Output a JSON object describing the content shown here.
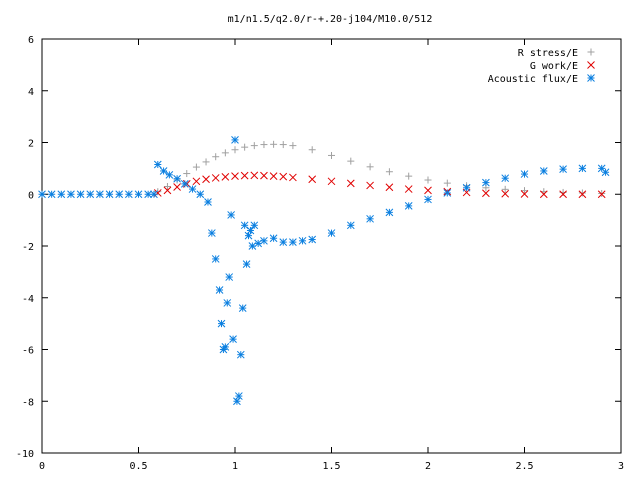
{
  "chart_data": {
    "type": "scatter",
    "title": "m1/n1.5/q2.0/r-+.20-j104/M10.0/512",
    "xlabel": "",
    "ylabel": "",
    "xlim": [
      0,
      3
    ],
    "ylim": [
      -10,
      6
    ],
    "grid": false,
    "legend_position": "top-right",
    "x_ticks": [
      0,
      0.5,
      1,
      1.5,
      2,
      2.5,
      3
    ],
    "x_tick_labels": [
      "0",
      "0.5",
      "1",
      "1.5",
      "2",
      "2.5",
      "3"
    ],
    "y_ticks": [
      -10,
      -8,
      -6,
      -4,
      -2,
      0,
      2,
      4,
      6
    ],
    "y_tick_labels": [
      "-10",
      "-8",
      "-6",
      "-4",
      "-2",
      "0",
      "2",
      "4",
      "6"
    ],
    "series": [
      {
        "name": "R stress/E",
        "marker": "plus",
        "color": "#a0a0a0",
        "x": [
          0.6,
          0.65,
          0.7,
          0.75,
          0.8,
          0.85,
          0.9,
          0.95,
          1.0,
          1.05,
          1.1,
          1.15,
          1.2,
          1.25,
          1.3,
          1.4,
          1.5,
          1.6,
          1.7,
          1.8,
          1.9,
          2.0,
          2.1,
          2.2,
          2.3,
          2.4,
          2.5,
          2.6,
          2.7,
          2.8,
          2.9
        ],
        "y": [
          0.1,
          0.3,
          0.55,
          0.8,
          1.05,
          1.25,
          1.45,
          1.6,
          1.72,
          1.82,
          1.88,
          1.92,
          1.93,
          1.92,
          1.88,
          1.72,
          1.5,
          1.28,
          1.06,
          0.87,
          0.7,
          0.55,
          0.43,
          0.33,
          0.25,
          0.19,
          0.14,
          0.1,
          0.07,
          0.05,
          0.03
        ]
      },
      {
        "name": "G work/E",
        "marker": "cross",
        "color": "#e00000",
        "x": [
          0.6,
          0.65,
          0.7,
          0.75,
          0.8,
          0.85,
          0.9,
          0.95,
          1.0,
          1.05,
          1.1,
          1.15,
          1.2,
          1.25,
          1.3,
          1.4,
          1.5,
          1.6,
          1.7,
          1.8,
          1.9,
          2.0,
          2.1,
          2.2,
          2.3,
          2.4,
          2.5,
          2.6,
          2.7,
          2.8,
          2.9
        ],
        "y": [
          0.05,
          0.15,
          0.28,
          0.4,
          0.5,
          0.58,
          0.63,
          0.67,
          0.7,
          0.72,
          0.73,
          0.72,
          0.7,
          0.68,
          0.65,
          0.58,
          0.5,
          0.42,
          0.34,
          0.27,
          0.2,
          0.15,
          0.1,
          0.07,
          0.04,
          0.02,
          0.01,
          0.0,
          0.0,
          0.0,
          0.0
        ]
      },
      {
        "name": "Acoustic flux/E",
        "marker": "star",
        "color": "#0a7fe0",
        "x": [
          0.0,
          0.05,
          0.1,
          0.15,
          0.2,
          0.25,
          0.3,
          0.35,
          0.4,
          0.45,
          0.5,
          0.55,
          0.58,
          0.6,
          0.63,
          0.66,
          0.7,
          0.74,
          0.78,
          0.82,
          0.86,
          0.88,
          0.9,
          0.92,
          0.93,
          0.94,
          0.95,
          0.96,
          0.97,
          0.98,
          0.99,
          1.0,
          1.01,
          1.02,
          1.03,
          1.04,
          1.05,
          1.06,
          1.07,
          1.08,
          1.09,
          1.1,
          1.12,
          1.15,
          1.2,
          1.25,
          1.3,
          1.35,
          1.4,
          1.5,
          1.6,
          1.7,
          1.8,
          1.9,
          2.0,
          2.1,
          2.2,
          2.3,
          2.4,
          2.5,
          2.6,
          2.7,
          2.8,
          2.9,
          2.92
        ],
        "y": [
          0.0,
          0.0,
          0.0,
          0.0,
          0.0,
          0.0,
          0.0,
          0.0,
          0.0,
          0.0,
          0.0,
          0.0,
          0.0,
          1.15,
          0.9,
          0.75,
          0.6,
          0.4,
          0.2,
          0.0,
          -0.3,
          -1.5,
          -2.5,
          -3.7,
          -5.0,
          -6.0,
          -5.9,
          -4.2,
          -3.2,
          -0.8,
          -5.6,
          2.1,
          -8.0,
          -7.8,
          -6.2,
          -4.4,
          -1.2,
          -2.7,
          -1.6,
          -1.4,
          -2.0,
          -1.2,
          -1.9,
          -1.8,
          -1.7,
          -1.85,
          -1.85,
          -1.8,
          -1.75,
          -1.5,
          -1.2,
          -0.95,
          -0.7,
          -0.45,
          -0.2,
          0.05,
          0.25,
          0.45,
          0.62,
          0.78,
          0.9,
          0.97,
          1.0,
          1.0,
          0.85
        ]
      }
    ]
  }
}
